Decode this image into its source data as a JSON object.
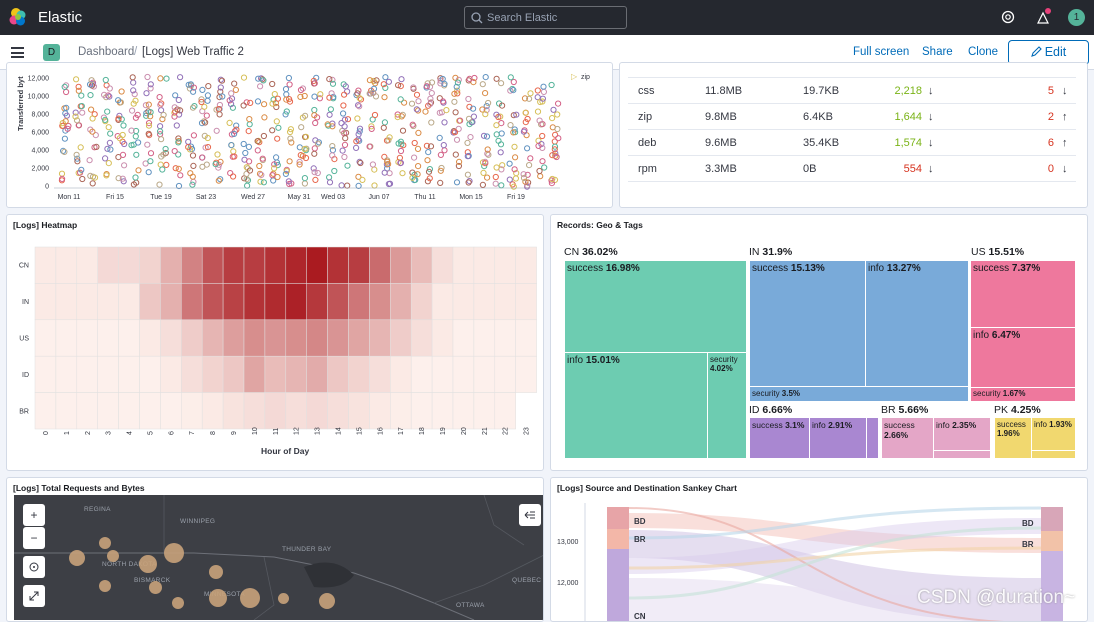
{
  "topbar": {
    "brand": "Elastic",
    "search_placeholder": "Search Elastic",
    "avatar": "1"
  },
  "navbar": {
    "space": "D",
    "crumb_root": "Dashboard",
    "crumb_sep": "/",
    "crumb_current": "[Logs] Web Traffic 2",
    "full_screen": "Full screen",
    "share": "Share",
    "clone": "Clone",
    "edit": "Edit"
  },
  "scatter": {
    "ylabel": "Transferred byt",
    "yticks": [
      "12,000",
      "10,000",
      "8,000",
      "6,000",
      "4,000",
      "2,000",
      "0"
    ],
    "xticks": [
      "Mon 11",
      "Fri 15",
      "Tue 19",
      "Sat 23",
      "Wed 27",
      "May 31",
      "Wed 03",
      "Jun 07",
      "Thu 11",
      "Mon 15",
      "Fri 19"
    ],
    "legend": "zip"
  },
  "table": {
    "rows": [
      {
        "ext": "css",
        "total": "11.8MB",
        "avg": "19.7KB",
        "count": "2,218",
        "count_trend": "↓",
        "err": "5",
        "err_trend": "↓",
        "count_color": "#7ab317"
      },
      {
        "ext": "zip",
        "total": "9.8MB",
        "avg": "6.4KB",
        "count": "1,644",
        "count_trend": "↓",
        "err": "2",
        "err_trend": "↑",
        "count_color": "#7ab317"
      },
      {
        "ext": "deb",
        "total": "9.6MB",
        "avg": "35.4KB",
        "count": "1,574",
        "count_trend": "↓",
        "err": "6",
        "err_trend": "↑",
        "count_color": "#7ab317"
      },
      {
        "ext": "rpm",
        "total": "3.3MB",
        "avg": "0B",
        "count": "554",
        "count_trend": "↓",
        "err": "0",
        "err_trend": "↓",
        "count_color": "#d6331f"
      }
    ]
  },
  "heatmap": {
    "title": "[Logs] Heatmap",
    "xlabel": "Hour of Day",
    "rows": [
      "CN",
      "IN",
      "US",
      "ID",
      "BR"
    ],
    "cols": [
      "0",
      "1",
      "2",
      "3",
      "4",
      "5",
      "6",
      "7",
      "8",
      "9",
      "10",
      "11",
      "12",
      "13",
      "14",
      "15",
      "16",
      "17",
      "18",
      "19",
      "20",
      "21",
      "22",
      "23"
    ],
    "values": [
      [
        0.05,
        0.05,
        0.05,
        0.12,
        0.12,
        0.15,
        0.3,
        0.5,
        0.7,
        0.8,
        0.8,
        0.85,
        0.9,
        0.95,
        0.85,
        0.8,
        0.6,
        0.4,
        0.25,
        0.1,
        0.05,
        0.05,
        0.05,
        0.05
      ],
      [
        0.05,
        0.05,
        0.05,
        0.05,
        0.05,
        0.2,
        0.3,
        0.55,
        0.7,
        0.78,
        0.85,
        0.88,
        0.92,
        0.82,
        0.7,
        0.55,
        0.45,
        0.3,
        0.15,
        0.05,
        0.05,
        0.05,
        0.05,
        0.05
      ],
      [
        0.02,
        0.02,
        0.02,
        0.02,
        0.02,
        0.05,
        0.1,
        0.18,
        0.28,
        0.38,
        0.45,
        0.42,
        0.45,
        0.48,
        0.42,
        0.35,
        0.28,
        0.18,
        0.1,
        0.05,
        0.02,
        0.02,
        0.02,
        0.02
      ],
      [
        0.02,
        0.02,
        0.02,
        0.02,
        0.02,
        0.02,
        0.05,
        0.1,
        0.15,
        0.2,
        0.35,
        0.25,
        0.28,
        0.32,
        0.2,
        0.15,
        0.1,
        0.05,
        0.02,
        0.02,
        0.02,
        0.02,
        0.02,
        0.02
      ],
      [
        0.02,
        0.02,
        0.02,
        0.02,
        0.02,
        0.02,
        0.02,
        0.03,
        0.05,
        0.08,
        0.1,
        0.12,
        0.1,
        0.12,
        0.1,
        0.08,
        0.05,
        0.03,
        0.02,
        0.02,
        0.02,
        0.02,
        0.02,
        null
      ]
    ]
  },
  "treemap": {
    "title": "Records: Geo & Tags",
    "cn": "CN 36.02%",
    "cn_success": "success 16.98%",
    "cn_info": "info 15.01%",
    "cn_security": "security 4.02%",
    "in": "IN 31.9%",
    "in_success": "success 15.13%",
    "in_info": "info 13.27%",
    "in_security": "security 3.5%",
    "us": "US 15.51%",
    "us_success": "success 7.37%",
    "us_info": "info 6.47%",
    "us_security": "security 1.67%",
    "id": "ID 6.66%",
    "id_success": "success 3.1%",
    "id_info": "info 2.91%",
    "br": "BR 5.66%",
    "br_success": "success 2.66%",
    "br_info": "info 2.35%",
    "pk": "PK 4.25%",
    "pk_success": "success 1.96%",
    "pk_info": "info 1.93%",
    "colors": {
      "cn": "#6dccb1",
      "in": "#79aad9",
      "us": "#ee789d",
      "id": "#a987d1",
      "br": "#e4a6c7",
      "pk": "#f1d86f"
    }
  },
  "map": {
    "title": "[Logs] Total Requests and Bytes",
    "zoom_in": "+",
    "zoom_out": "−",
    "cities": [
      "REGINA",
      "WINNIPEG",
      "THUNDER BAY",
      "NORTH DAKOTA",
      "BISMARCK",
      "MINNESOTA",
      "QUEBEC",
      "OTTAWA"
    ]
  },
  "sankey": {
    "title": "[Logs] Source and Destination Sankey Chart",
    "yticks": [
      "13,000",
      "12,000"
    ],
    "labels_left": [
      "BD",
      "BR",
      "CN"
    ],
    "labels_right": [
      "BD",
      "BR"
    ]
  },
  "watermark": "CSDN @duration~"
}
